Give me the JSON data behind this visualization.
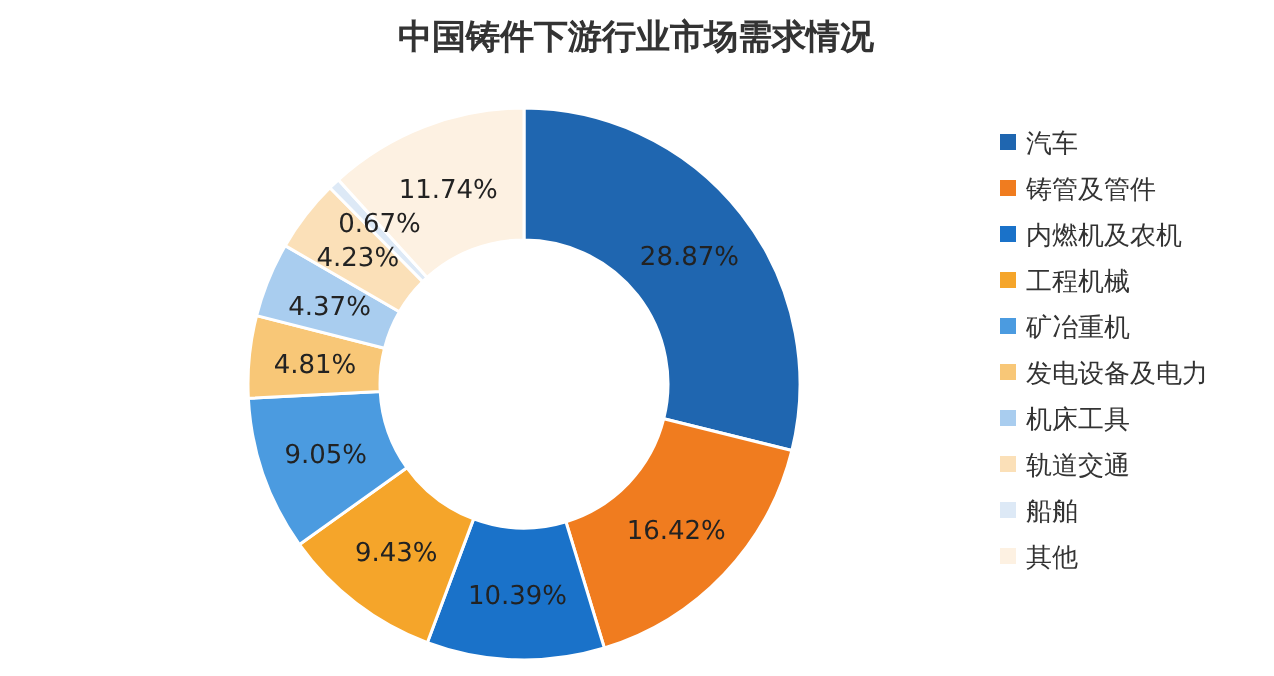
{
  "chart_data": {
    "type": "donut",
    "title": "中国铸件下游行业市场需求情况",
    "categories": [
      "汽车",
      "铸管及管件",
      "内燃机及农机",
      "工程机械",
      "矿冶重机",
      "发电设备及电力",
      "机床工具",
      "轨道交通",
      "船舶",
      "其他"
    ],
    "values": [
      28.87,
      16.42,
      10.39,
      9.43,
      9.05,
      4.81,
      4.37,
      4.23,
      0.67,
      11.74
    ],
    "colors": [
      "#1f66b0",
      "#f07c1f",
      "#1a72c9",
      "#f5a52a",
      "#4b9be0",
      "#f8c777",
      "#a9cdef",
      "#fbe0b8",
      "#dde9f6",
      "#fdf1e2"
    ],
    "value_labels": [
      "28.87%",
      "16.42%",
      "10.39%",
      "9.43%",
      "9.05%",
      "4.81%",
      "4.37%",
      "4.23%",
      "0.67%",
      "11.74%"
    ],
    "legend": "right"
  }
}
